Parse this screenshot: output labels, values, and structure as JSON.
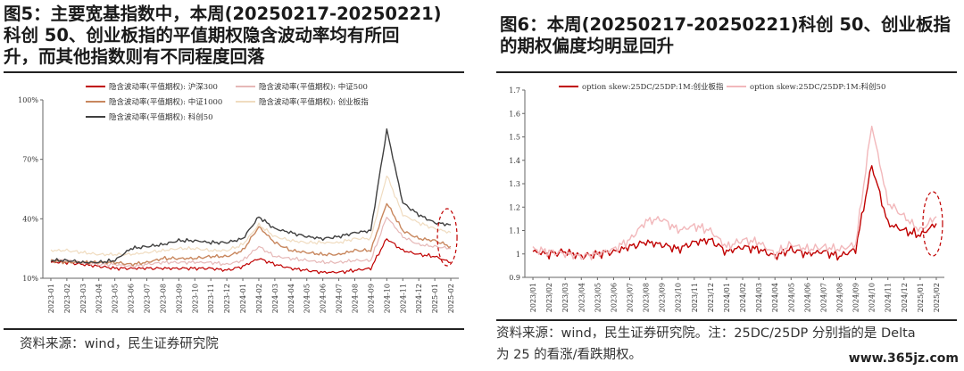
{
  "left": {
    "title": "图5：主要宽基指数中，本周(20250217-20250221)科创 50、创业板指的平值期权隐含波动率均有所回升，而其他指数则有不同程度回落",
    "title_lines": [
      "图5：主要宽基指数中，本周(20250217-20250221)",
      "科创 50、创业板指的平值期权隐含波动率均有所回",
      "升，而其他指数则有不同程度回落"
    ],
    "source": "资料来源：wind，民生证券研究院"
  },
  "right": {
    "title": "图6：本周(20250217-20250221)科创 50、创业板指的期权偏度均明显回升",
    "title_lines": [
      "图6：本周(20250217-20250221)科创 50、创业板指",
      "的期权偏度均明显回升"
    ],
    "source_lines": [
      "资料来源：wind，民生证券研究院。注：25DC/25DP 分别指的是 Delta",
      "为 25 的看涨/看跌期权。"
    ]
  },
  "watermark": "www.365jz.com",
  "chart_data": [
    {
      "type": "line",
      "x_axis_type": "month",
      "x_start": "2023-01",
      "categories": [
        "2023-01",
        "2023-02",
        "2023-03",
        "2023-04",
        "2023-05",
        "2023-06",
        "2023-07",
        "2023-08",
        "2023-09",
        "2023-10",
        "2023-11",
        "2023-12",
        "2024-01",
        "2024-02",
        "2024-03",
        "2024-04",
        "2024-05",
        "2024-06",
        "2024-07",
        "2024-08",
        "2024-09",
        "2024-10",
        "2024-11",
        "2024-12",
        "2025-01",
        "2025-02"
      ],
      "ylim": [
        10,
        100
      ],
      "yticks": [
        10,
        40,
        70,
        100
      ],
      "ytick_labels": [
        "10%",
        "40%",
        "70%",
        "100%"
      ],
      "legend_position": "top",
      "series": [
        {
          "name": "隐含波动率(平值期权): 沪深300",
          "color": "#c00000",
          "values": [
            18,
            18,
            17,
            16,
            15,
            15,
            15,
            15,
            15,
            15,
            15,
            14,
            16,
            20,
            17,
            15,
            14,
            13,
            13,
            14,
            15,
            30,
            24,
            22,
            21,
            18
          ]
        },
        {
          "name": "隐含波动率(平值期权): 中证500",
          "color": "#e6b8b7",
          "values": [
            19,
            19,
            18,
            17,
            17,
            16,
            17,
            18,
            18,
            18,
            18,
            17,
            19,
            26,
            21,
            20,
            19,
            18,
            18,
            19,
            19,
            41,
            31,
            27,
            26,
            25
          ]
        },
        {
          "name": "隐含波动率(平值期权): 中证1000",
          "color": "#c8875e",
          "values": [
            19,
            18,
            18,
            18,
            18,
            17,
            18,
            20,
            20,
            20,
            21,
            21,
            24,
            36,
            28,
            24,
            23,
            22,
            22,
            24,
            24,
            48,
            34,
            30,
            29,
            26
          ]
        },
        {
          "name": "隐含波动率(平值期权): 创业板指",
          "color": "#f0dcc0",
          "values": [
            24,
            24,
            23,
            22,
            22,
            22,
            23,
            24,
            25,
            25,
            24,
            24,
            27,
            37,
            31,
            29,
            28,
            28,
            28,
            30,
            30,
            62,
            42,
            38,
            35,
            33
          ]
        },
        {
          "name": "隐含波动率(平值期权): 科创50",
          "color": "#404040",
          "values": [
            19,
            19,
            18,
            18,
            19,
            25,
            26,
            27,
            29,
            29,
            28,
            28,
            30,
            41,
            35,
            33,
            31,
            30,
            31,
            33,
            34,
            85,
            48,
            42,
            38,
            37
          ]
        }
      ]
    },
    {
      "type": "line",
      "x_axis_type": "month",
      "x_start": "2023/01",
      "categories": [
        "2023/01",
        "2023/02",
        "2023/03",
        "2023/04",
        "2023/05",
        "2023/06",
        "2023/07",
        "2023/08",
        "2023/09",
        "2023/10",
        "2023/11",
        "2023/12",
        "2024/01",
        "2024/02",
        "2024/03",
        "2024/04",
        "2024/05",
        "2024/06",
        "2024/07",
        "2024/08",
        "2024/09",
        "2024/10",
        "2024/11",
        "2024/12",
        "2025/01",
        "2025/02"
      ],
      "ylim": [
        0.9,
        1.7
      ],
      "yticks": [
        0.9,
        1,
        1.1,
        1.2,
        1.3,
        1.4,
        1.5,
        1.6,
        1.7
      ],
      "ytick_labels": [
        "0.9",
        "1",
        "1.1",
        "1.2",
        "1.3",
        "1.4",
        "1.5",
        "1.6",
        "1.7"
      ],
      "legend_position": "top",
      "series": [
        {
          "name": "option skew:25DC/25DP:1M:创业板指",
          "color": "#c00000",
          "values": [
            1.01,
            1.0,
            1.01,
            0.99,
            1.0,
            1.01,
            1.03,
            1.05,
            1.04,
            1.02,
            1.05,
            1.06,
            1.01,
            1.03,
            1.02,
            0.99,
            1.02,
            1.0,
            1.01,
            0.99,
            1.02,
            1.38,
            1.13,
            1.1,
            1.08,
            1.13
          ]
        },
        {
          "name": "option skew:25DC/25DP:1M:科创50",
          "color": "#f2b8bb",
          "values": [
            1.02,
            1.01,
            1.0,
            0.99,
            1.0,
            1.02,
            1.06,
            1.14,
            1.15,
            1.1,
            1.12,
            1.1,
            1.03,
            1.06,
            1.05,
            1.0,
            1.04,
            1.02,
            1.03,
            1.02,
            1.04,
            1.55,
            1.22,
            1.16,
            1.1,
            1.16
          ]
        }
      ]
    }
  ]
}
